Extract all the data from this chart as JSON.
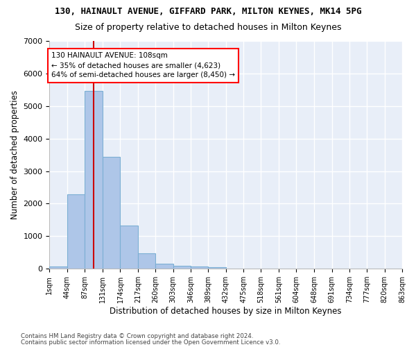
{
  "title": "130, HAINAULT AVENUE, GIFFARD PARK, MILTON KEYNES, MK14 5PG",
  "subtitle": "Size of property relative to detached houses in Milton Keynes",
  "xlabel": "Distribution of detached houses by size in Milton Keynes",
  "ylabel": "Number of detached properties",
  "bar_color": "#aec6e8",
  "bar_edge_color": "#7bafd4",
  "background_color": "#e8eef8",
  "grid_color": "#ffffff",
  "annotation_line1": "130 HAINAULT AVENUE: 108sqm",
  "annotation_line2": "← 35% of detached houses are smaller (4,623)",
  "annotation_line3": "64% of semi-detached houses are larger (8,450) →",
  "vline_color": "#cc0000",
  "footnote1": "Contains HM Land Registry data © Crown copyright and database right 2024.",
  "footnote2": "Contains public sector information licensed under the Open Government Licence v3.0.",
  "bin_edges": [
    1,
    44,
    87,
    131,
    174,
    217,
    260,
    303,
    346,
    389,
    432,
    475,
    518,
    561,
    604,
    648,
    691,
    734,
    777,
    820,
    863
  ],
  "bin_counts": [
    75,
    2280,
    5470,
    3440,
    1320,
    470,
    160,
    100,
    70,
    40,
    0,
    0,
    0,
    0,
    0,
    0,
    0,
    0,
    0,
    0
  ],
  "tick_labels": [
    "1sqm",
    "44sqm",
    "87sqm",
    "131sqm",
    "174sqm",
    "217sqm",
    "260sqm",
    "303sqm",
    "346sqm",
    "389sqm",
    "432sqm",
    "475sqm",
    "518sqm",
    "561sqm",
    "604sqm",
    "648sqm",
    "691sqm",
    "734sqm",
    "777sqm",
    "820sqm",
    "863sqm"
  ],
  "ylim": [
    0,
    7000
  ],
  "yticks": [
    0,
    1000,
    2000,
    3000,
    4000,
    5000,
    6000,
    7000
  ],
  "vline_x": 108
}
